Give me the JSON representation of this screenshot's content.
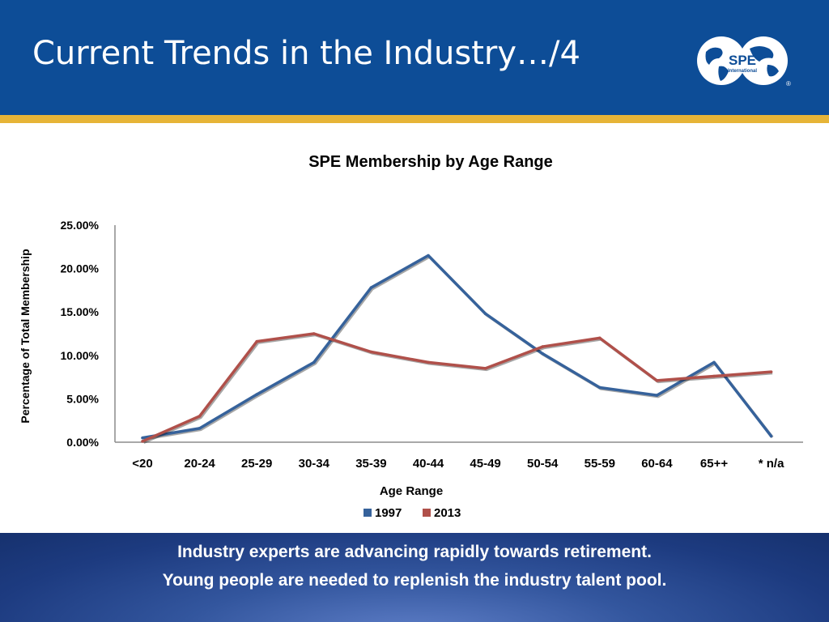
{
  "slide": {
    "title": "Current Trends in the Industry…/4",
    "logo": {
      "text": "SPE",
      "subtext": "International",
      "registered": "®",
      "icon": "globe-icon"
    },
    "footer": {
      "line1": "Industry experts are advancing rapidly towards retirement.",
      "line2": "Young people are needed to replenish the industry talent pool."
    }
  },
  "colors": {
    "header_bg": "#0d4d97",
    "gold_bar": "#e6b437",
    "series_1997": "#36629b",
    "series_2013": "#b0504a"
  },
  "chart_data": {
    "type": "line",
    "title": "SPE Membership by Age Range",
    "xlabel": "Age Range",
    "ylabel": "Percentage of Total Membership",
    "categories": [
      "<20",
      "20-24",
      "25-29",
      "30-34",
      "35-39",
      "40-44",
      "45-49",
      "50-54",
      "55-59",
      "60-64",
      "65++",
      "* n/a"
    ],
    "ylim": [
      0,
      25
    ],
    "yticks": [
      "0.00%",
      "5.00%",
      "10.00%",
      "15.00%",
      "20.00%",
      "25.00%"
    ],
    "grid": false,
    "legend": "bottom",
    "series": [
      {
        "name": "1997",
        "color": "#36629b",
        "values": [
          0.5,
          1.6,
          5.5,
          9.2,
          17.8,
          21.5,
          14.8,
          10.2,
          6.3,
          5.4,
          9.2,
          0.7
        ]
      },
      {
        "name": "2013",
        "color": "#b0504a",
        "values": [
          0.1,
          3.0,
          11.6,
          12.5,
          10.4,
          9.2,
          8.5,
          11.0,
          12.0,
          7.1,
          7.6,
          8.1
        ]
      }
    ]
  }
}
